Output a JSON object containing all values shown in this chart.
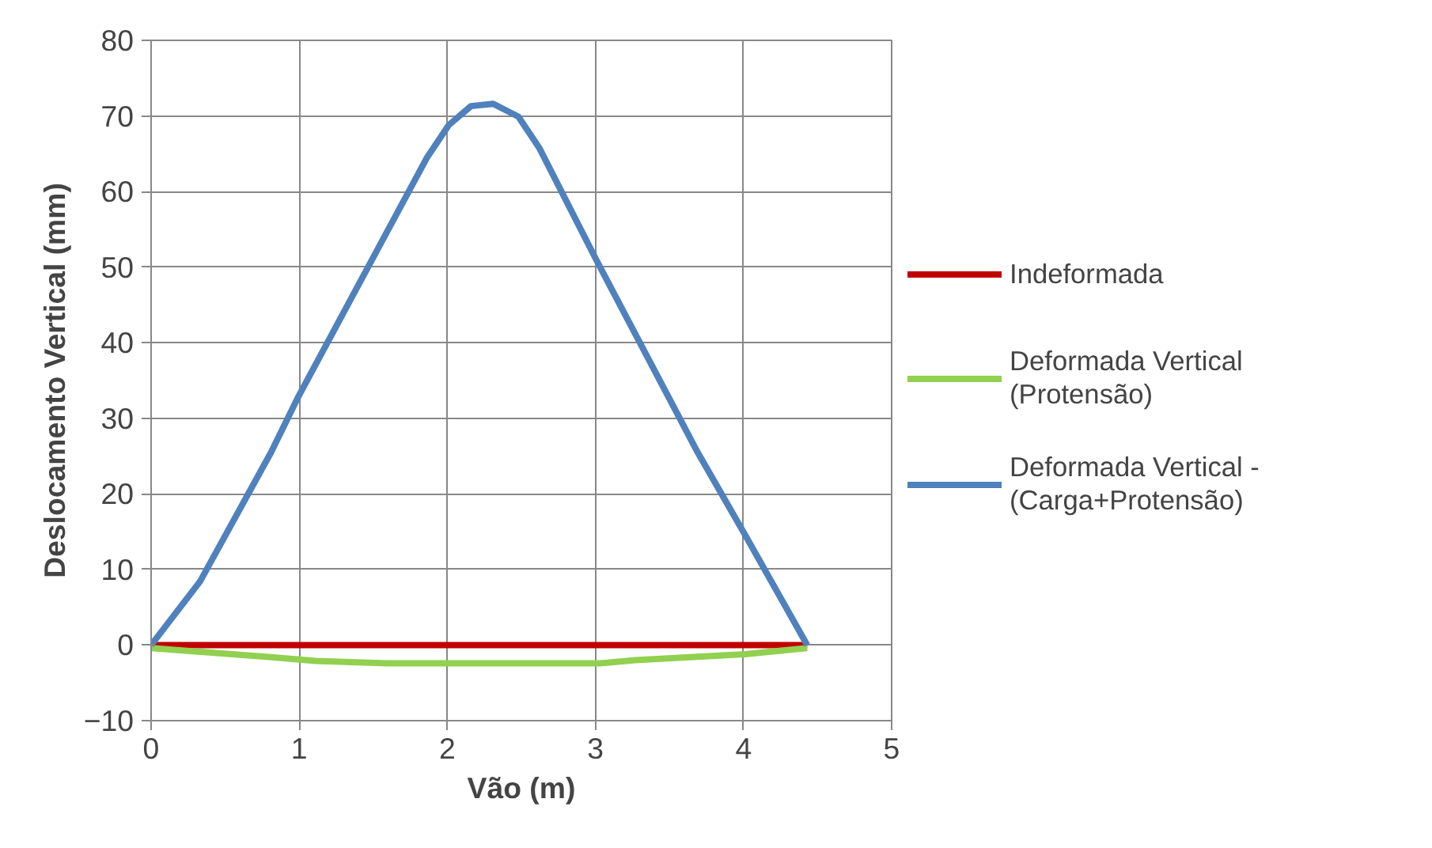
{
  "chart_data": {
    "type": "line",
    "xlabel": "Vão (m)",
    "ylabel": "Deslocamento Vertical (mm)",
    "xlim": [
      0,
      5
    ],
    "ylim": [
      -10,
      80
    ],
    "xticks": [
      0,
      1,
      2,
      3,
      4,
      5
    ],
    "yticks": [
      -10,
      0,
      10,
      20,
      30,
      40,
      50,
      60,
      70,
      80
    ],
    "grid": true,
    "legend": "right",
    "marker": "none",
    "line_style": "solid",
    "series": [
      {
        "name": "Indeformada",
        "color": "#c00000",
        "x": [
          0,
          4.43
        ],
        "values": [
          0,
          0
        ]
      },
      {
        "name": "Deformada Vertical (Protensão)",
        "color": "#92d050",
        "x": [
          0,
          0.81,
          1.11,
          1.59,
          3.04,
          3.27,
          4.01,
          4.43
        ],
        "values": [
          -0.4,
          -1.6,
          -2.1,
          -2.4,
          -2.4,
          -2.0,
          -1.2,
          -0.4
        ]
      },
      {
        "name": "Deformada Vertical - (Carga+Protensão)",
        "color": "#4f81bd",
        "x": [
          0,
          0.33,
          0.81,
          0.99,
          1.86,
          2.01,
          2.16,
          2.31,
          2.48,
          2.62,
          3.01,
          3.69,
          4.01,
          4.43
        ],
        "values": [
          0,
          8.4,
          25.5,
          32.7,
          64.4,
          68.8,
          71.3,
          71.6,
          69.9,
          65.8,
          50.8,
          25.5,
          14.6,
          0
        ]
      }
    ]
  }
}
